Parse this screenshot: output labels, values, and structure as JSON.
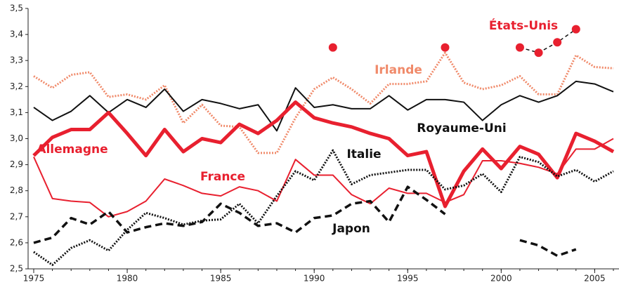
{
  "chart_data": {
    "type": "line",
    "x": [
      1975,
      1976,
      1977,
      1978,
      1979,
      1980,
      1981,
      1982,
      1983,
      1984,
      1985,
      1986,
      1987,
      1988,
      1989,
      1990,
      1991,
      1992,
      1993,
      1994,
      1995,
      1996,
      1997,
      1998,
      1999,
      2000,
      2001,
      2002,
      2003,
      2004,
      2005,
      2006
    ],
    "xlim": [
      1974.7,
      2006.3
    ],
    "xticks": [
      1975,
      1980,
      1985,
      1990,
      1995,
      2000,
      2005
    ],
    "ylim": [
      2.5,
      3.5
    ],
    "yticks": [
      {
        "value": 2.5,
        "label": "2,5"
      },
      {
        "value": 2.6,
        "label": "2,6"
      },
      {
        "value": 2.7,
        "label": "2,7"
      },
      {
        "value": 2.8,
        "label": "2,8"
      },
      {
        "value": 2.9,
        "label": "2,9"
      },
      {
        "value": 3.0,
        "label": "3,0"
      },
      {
        "value": 3.1,
        "label": "3,1"
      },
      {
        "value": 3.2,
        "label": "3,2"
      },
      {
        "value": 3.3,
        "label": "3,3"
      },
      {
        "value": 3.4,
        "label": "3,4"
      },
      {
        "value": 3.5,
        "label": "3,5"
      }
    ],
    "grid": false,
    "series": [
      {
        "name": "Irlande",
        "color": "#f08a6a",
        "style": "dotted",
        "values": [
          3.24,
          3.195,
          3.245,
          3.255,
          3.16,
          3.17,
          3.15,
          3.205,
          3.06,
          3.13,
          3.05,
          3.045,
          2.945,
          2.945,
          3.08,
          3.19,
          3.235,
          3.19,
          3.135,
          3.21,
          3.21,
          3.22,
          3.33,
          3.215,
          3.19,
          3.205,
          3.24,
          3.17,
          3.17,
          3.32,
          3.275,
          3.27
        ]
      },
      {
        "name": "Royaume-Uni",
        "color": "#111111",
        "style": "solid",
        "values": [
          3.12,
          3.07,
          3.105,
          3.165,
          3.1,
          3.15,
          3.12,
          3.19,
          3.105,
          3.15,
          3.135,
          3.115,
          3.13,
          3.03,
          3.195,
          3.12,
          3.13,
          3.115,
          3.115,
          3.165,
          3.11,
          3.15,
          3.15,
          3.14,
          3.07,
          3.13,
          3.165,
          3.14,
          3.165,
          3.22,
          3.21,
          3.18
        ]
      },
      {
        "name": "Allemagne",
        "color": "#e8202f",
        "style": "thick",
        "values": [
          2.935,
          3.005,
          3.035,
          3.035,
          3.1,
          3.02,
          2.935,
          3.035,
          2.95,
          3.0,
          2.985,
          3.055,
          3.02,
          3.07,
          3.14,
          3.08,
          3.06,
          3.045,
          3.02,
          3.0,
          2.935,
          2.95,
          2.74,
          2.875,
          2.96,
          2.885,
          2.97,
          2.94,
          2.85,
          3.02,
          2.99,
          2.95
        ]
      },
      {
        "name": "France",
        "color": "#e8202f",
        "style": "solid",
        "values": [
          2.93,
          2.77,
          2.76,
          2.755,
          2.7,
          2.72,
          2.76,
          2.845,
          2.82,
          2.79,
          2.78,
          2.815,
          2.8,
          2.76,
          2.92,
          2.86,
          2.86,
          2.785,
          2.75,
          2.81,
          2.79,
          2.79,
          2.755,
          2.785,
          2.915,
          2.915,
          2.905,
          2.89,
          2.865,
          2.96,
          2.96,
          3.0
        ]
      },
      {
        "name": "Italie",
        "color": "#111111",
        "style": "dotted",
        "values": [
          2.565,
          2.515,
          2.58,
          2.61,
          2.57,
          2.65,
          2.715,
          2.695,
          2.67,
          2.685,
          2.69,
          2.75,
          2.675,
          2.78,
          2.875,
          2.84,
          2.955,
          2.825,
          2.86,
          2.87,
          2.88,
          2.88,
          2.805,
          2.82,
          2.865,
          2.795,
          2.93,
          2.91,
          2.855,
          2.88,
          2.835,
          2.875
        ]
      },
      {
        "name": "Japon",
        "color": "#111111",
        "style": "dashed",
        "values": [
          2.6,
          2.62,
          2.695,
          2.67,
          2.72,
          2.64,
          2.66,
          2.675,
          2.665,
          2.68,
          2.75,
          2.715,
          2.665,
          2.675,
          2.64,
          2.695,
          2.705,
          2.75,
          2.76,
          2.68,
          2.815,
          2.765,
          2.71,
          null,
          null,
          null,
          2.61,
          2.59,
          2.55,
          2.575,
          null,
          null
        ]
      },
      {
        "name": "États-Unis",
        "color": "#e8202f",
        "style": "points",
        "values": [
          null,
          null,
          null,
          null,
          null,
          null,
          null,
          null,
          null,
          null,
          null,
          null,
          null,
          null,
          null,
          null,
          3.35,
          null,
          null,
          null,
          null,
          null,
          3.35,
          null,
          null,
          null,
          3.35,
          3.33,
          3.37,
          3.42,
          null,
          null
        ]
      }
    ]
  }
}
